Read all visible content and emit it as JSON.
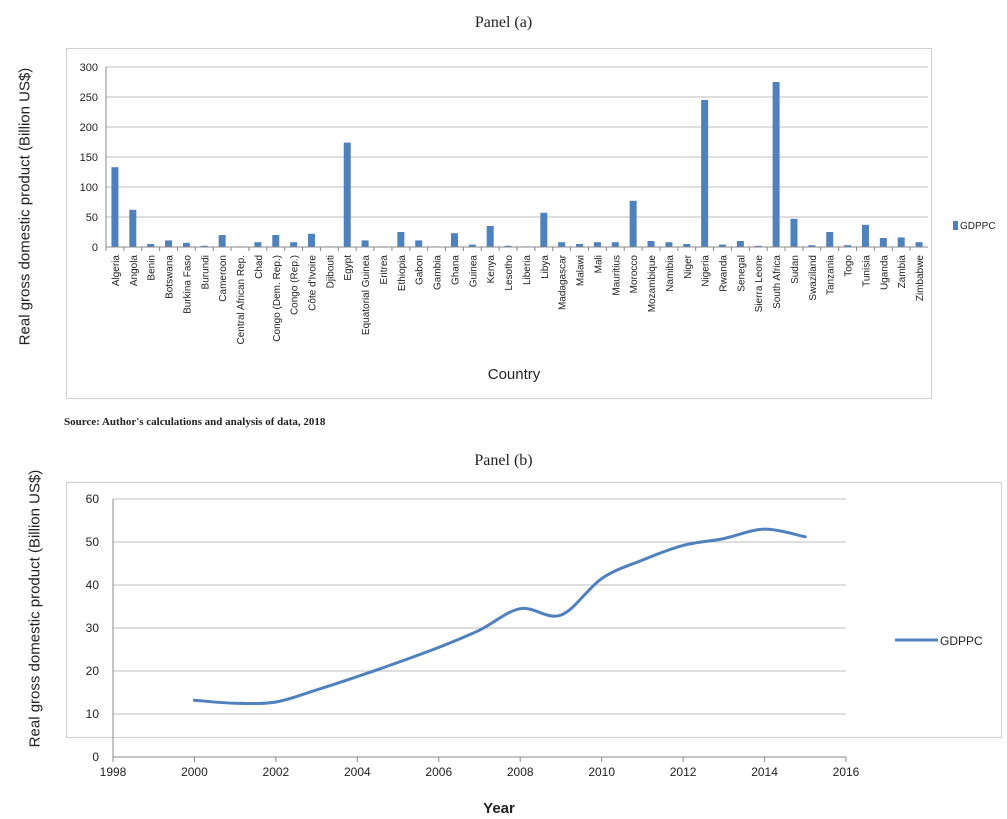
{
  "source_note": "Source: Author's calculations and analysis of data, 2018",
  "chart_data": [
    {
      "type": "bar",
      "title": "Panel (a)",
      "xlabel": "Country",
      "ylabel": "Real gross domestic product (Billion US$)",
      "ylim": [
        0,
        300
      ],
      "yticks": [
        0,
        50,
        100,
        150,
        200,
        250,
        300
      ],
      "grid": true,
      "legend_position": "right",
      "series_color": "#4f81bd",
      "categories": [
        "Algeria",
        "Angola",
        "Benin",
        "Botswana",
        "Burkina Faso",
        "Burundi",
        "Cameroon",
        "Central African Rep.",
        "Chad",
        "Congo (Dem. Rep.)",
        "Congo (Rep.)",
        "Côte d'Ivoire",
        "Djibouti",
        "Egypt",
        "Equatorial Guinea",
        "Eritrea",
        "Ethiopia",
        "Gabon",
        "Gambia",
        "Ghana",
        "Guinea",
        "Kenya",
        "Lesotho",
        "Liberia",
        "Libya",
        "Madagascar",
        "Malawi",
        "Mali",
        "Mauritius",
        "Morocco",
        "Mozambique",
        "Namibia",
        "Niger",
        "Nigeria",
        "Rwanda",
        "Senegal",
        "Sierra Leone",
        "South Africa",
        "Sudan",
        "Swaziland",
        "Tanzania",
        "Togo",
        "Tunisia",
        "Uganda",
        "Zambia",
        "Zimbabwe"
      ],
      "series": [
        {
          "name": "GDPPC",
          "values": [
            133,
            62,
            5,
            11,
            7,
            2,
            20,
            1,
            8,
            20,
            8,
            22,
            1,
            174,
            11,
            1,
            25,
            11,
            1,
            23,
            4,
            35,
            2,
            1,
            57,
            8,
            5,
            8,
            8,
            77,
            10,
            8,
            5,
            245,
            4,
            10,
            2,
            275,
            47,
            3,
            25,
            3,
            37,
            15,
            16,
            8
          ]
        }
      ]
    },
    {
      "type": "line",
      "title": "Panel (b)",
      "xlabel": "Year",
      "ylabel": "Real gross domestic product (Billion US$)",
      "xlim": [
        1998,
        2016
      ],
      "xticks": [
        1998,
        2000,
        2002,
        2004,
        2006,
        2008,
        2010,
        2012,
        2014,
        2016
      ],
      "ylim": [
        0,
        60
      ],
      "yticks": [
        0,
        10,
        20,
        30,
        40,
        50,
        60
      ],
      "grid": true,
      "legend_position": "right",
      "series_color": "#4f81bd",
      "series": [
        {
          "name": "GDPPC",
          "x": [
            2000,
            2001,
            2002,
            2003,
            2004,
            2005,
            2006,
            2007,
            2008,
            2009,
            2010,
            2011,
            2012,
            2013,
            2014,
            2015
          ],
          "values": [
            13.2,
            12.5,
            12.8,
            15.6,
            18.7,
            22.0,
            25.5,
            29.5,
            34.5,
            33.0,
            41.5,
            45.8,
            49.2,
            50.8,
            53.0,
            51.2
          ]
        }
      ]
    }
  ]
}
